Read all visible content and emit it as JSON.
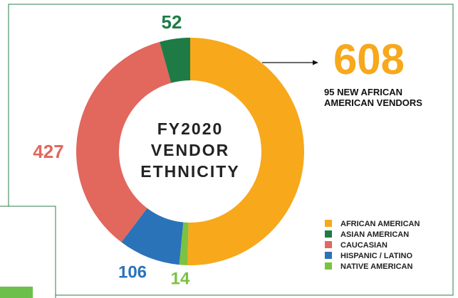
{
  "chart_data": {
    "type": "donut",
    "title": "FY2020 VENDOR ETHNICITY",
    "annotation": "95 NEW AFRICAN AMERICAN VENDORS",
    "categories": [
      "AFRICAN AMERICAN",
      "ASIAN AMERICAN",
      "CAUCASIAN",
      "HISPANIC / LATINO",
      "NATIVE AMERICAN"
    ],
    "values": [
      608,
      52,
      427,
      106,
      14
    ],
    "colors": [
      "#f7a81b",
      "#1e7b45",
      "#e2675d",
      "#2a73b8",
      "#7cc242"
    ]
  }
}
